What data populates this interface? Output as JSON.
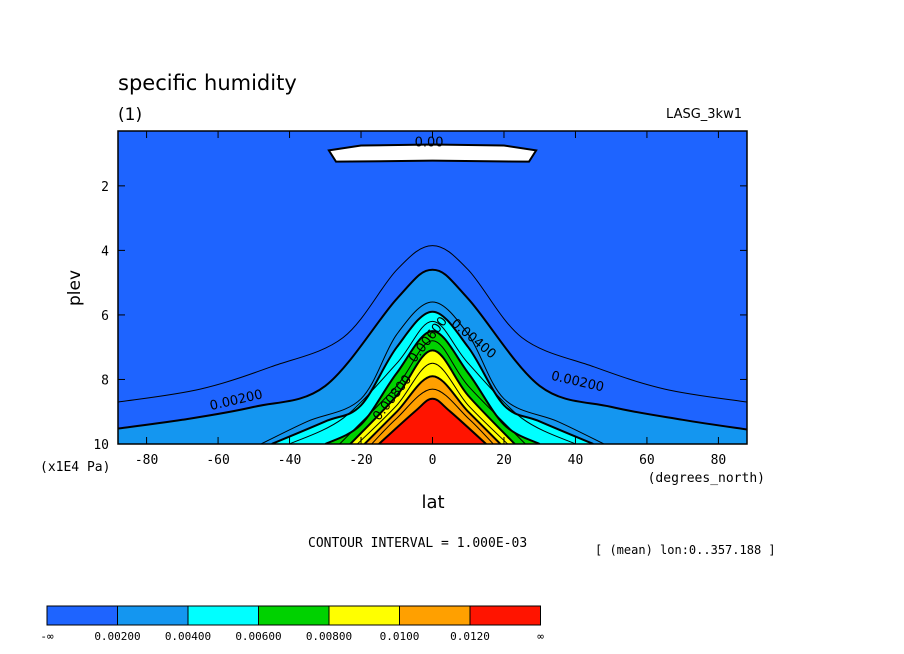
{
  "chart_data": {
    "type": "contour",
    "title": "specific humidity",
    "subtitle": "(1)",
    "dataset": "LASG_3kw1",
    "xlabel": "lat",
    "x_units": "(degrees_north)",
    "ylabel": "plev",
    "y_units": "(x1E4 Pa)",
    "xlim": [
      -88,
      88
    ],
    "ylim": [
      0.3,
      10
    ],
    "y_inverted": true,
    "x_ticks": [
      "-80",
      "-60",
      "-40",
      "-20",
      "0",
      "20",
      "40",
      "60",
      "80"
    ],
    "y_ticks": [
      "2",
      "4",
      "6",
      "8",
      "10"
    ],
    "contour_interval_text": "CONTOUR INTERVAL = 1.000E-03",
    "mean_text": "[ (mean) lon:0..357.188 ]",
    "contour_labels": [
      "0.00",
      "0.00200",
      "0.00200",
      "0.00400",
      "0.00600",
      "0.00800"
    ],
    "colorbar": {
      "colors": [
        "#1e64ff",
        "#1496f0",
        "#00ffff",
        "#00d200",
        "#ffff00",
        "#ffa000",
        "#ff1400"
      ],
      "labels": [
        "-∞",
        "0.00200",
        "0.00400",
        "0.00600",
        "0.00800",
        "0.0100",
        "0.0120",
        "∞"
      ]
    },
    "contour_levels": [
      {
        "value": 0.002,
        "color": "#1496f0",
        "points": [
          [
            -88,
            9.52
          ],
          [
            -70,
            9.25
          ],
          [
            -50,
            8.85
          ],
          [
            -30,
            8.2
          ],
          [
            -10,
            5.5
          ],
          [
            0,
            4.6
          ],
          [
            10,
            5.5
          ],
          [
            30,
            8.2
          ],
          [
            50,
            8.85
          ],
          [
            70,
            9.25
          ],
          [
            88,
            9.55
          ]
        ]
      },
      {
        "value": 0.003,
        "color": "#1496f0",
        "points": [
          [
            -48,
            10
          ],
          [
            -35,
            9.3
          ],
          [
            -20,
            8.6
          ],
          [
            -10,
            6.6
          ],
          [
            0,
            5.6
          ],
          [
            10,
            6.6
          ],
          [
            20,
            8.6
          ],
          [
            35,
            9.3
          ],
          [
            48,
            10
          ]
        ]
      },
      {
        "value": 0.004,
        "color": "#00ffff",
        "points": [
          [
            -45,
            10
          ],
          [
            -30,
            9.3
          ],
          [
            -20,
            8.8
          ],
          [
            -10,
            7.0
          ],
          [
            0,
            5.9
          ],
          [
            10,
            7.0
          ],
          [
            20,
            8.8
          ],
          [
            30,
            9.3
          ],
          [
            45,
            10
          ]
        ]
      },
      {
        "value": 0.005,
        "color": "#00ffff",
        "points": [
          [
            -40,
            10
          ],
          [
            -25,
            9.2
          ],
          [
            -10,
            7.5
          ],
          [
            0,
            6.2
          ],
          [
            10,
            7.5
          ],
          [
            25,
            9.2
          ],
          [
            40,
            10
          ]
        ]
      },
      {
        "value": 0.006,
        "color": "#00d200",
        "points": [
          [
            -30,
            10
          ],
          [
            -20,
            9.4
          ],
          [
            -10,
            7.8
          ],
          [
            0,
            6.5
          ],
          [
            10,
            7.8
          ],
          [
            20,
            9.4
          ],
          [
            30,
            10
          ]
        ]
      },
      {
        "value": 0.007,
        "color": "#00d200",
        "points": [
          [
            -26,
            10
          ],
          [
            -10,
            8.2
          ],
          [
            0,
            6.8
          ],
          [
            10,
            8.2
          ],
          [
            26,
            10
          ]
        ]
      },
      {
        "value": 0.008,
        "color": "#ffff00",
        "points": [
          [
            -23,
            10
          ],
          [
            -10,
            8.5
          ],
          [
            0,
            7.1
          ],
          [
            10,
            8.5
          ],
          [
            23,
            10
          ]
        ]
      },
      {
        "value": 0.009,
        "color": "#ffff00",
        "points": [
          [
            -21,
            10
          ],
          [
            -10,
            8.8
          ],
          [
            0,
            7.5
          ],
          [
            10,
            8.8
          ],
          [
            21,
            10
          ]
        ]
      },
      {
        "value": 0.01,
        "color": "#ffa000",
        "points": [
          [
            -19,
            10
          ],
          [
            -10,
            9.0
          ],
          [
            0,
            7.9
          ],
          [
            10,
            9.0
          ],
          [
            19,
            10
          ]
        ]
      },
      {
        "value": 0.011,
        "color": "#ffa000",
        "points": [
          [
            -17,
            10
          ],
          [
            -10,
            9.2
          ],
          [
            0,
            8.3
          ],
          [
            10,
            9.2
          ],
          [
            17,
            10
          ]
        ]
      },
      {
        "value": 0.012,
        "color": "#ff1400",
        "points": [
          [
            -15,
            10
          ],
          [
            -5,
            9.0
          ],
          [
            0,
            8.6
          ],
          [
            5,
            9.0
          ],
          [
            15,
            10
          ]
        ]
      }
    ],
    "thin_outer_contour": {
      "value": 0.001,
      "points": [
        [
          -88,
          8.7
        ],
        [
          -65,
          8.3
        ],
        [
          -45,
          7.6
        ],
        [
          -25,
          6.7
        ],
        [
          -10,
          4.6
        ],
        [
          0,
          3.85
        ],
        [
          10,
          4.6
        ],
        [
          25,
          6.7
        ],
        [
          45,
          7.6
        ],
        [
          65,
          8.3
        ],
        [
          88,
          8.7
        ]
      ]
    },
    "zero_region": {
      "value": 0.0,
      "points": [
        [
          -29,
          0.9
        ],
        [
          -20,
          0.75
        ],
        [
          0,
          0.72
        ],
        [
          20,
          0.75
        ],
        [
          29,
          0.9
        ],
        [
          27,
          1.25
        ],
        [
          0,
          1.22
        ],
        [
          -27,
          1.25
        ]
      ]
    }
  }
}
